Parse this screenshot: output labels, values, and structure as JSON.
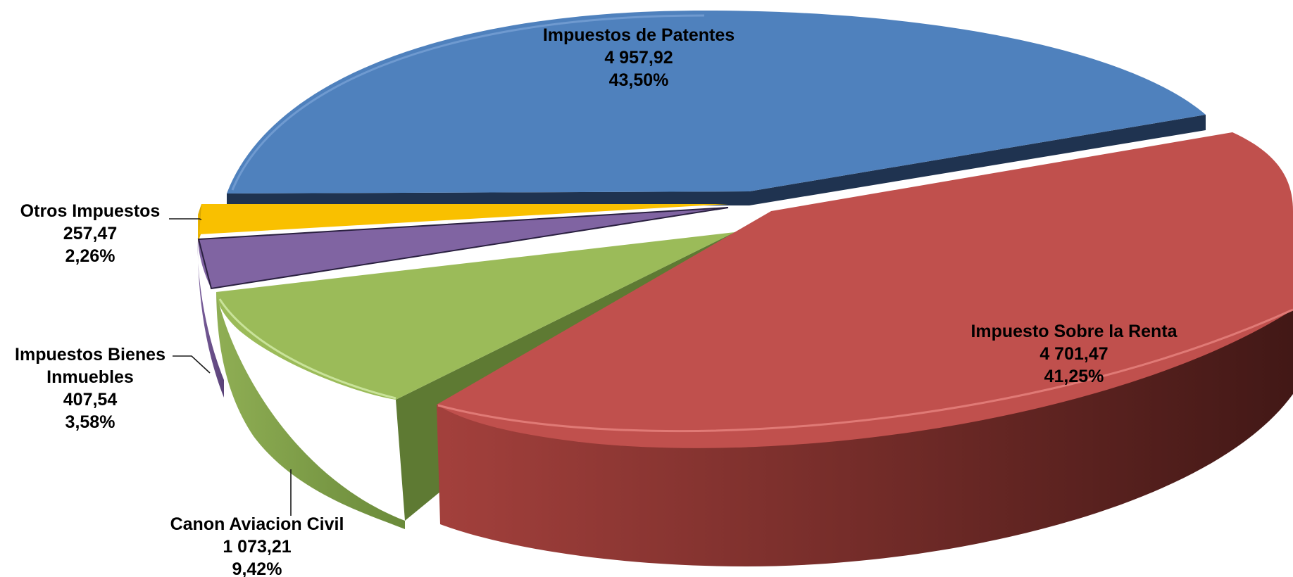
{
  "chart_data": {
    "type": "pie",
    "style": "3d-exploded",
    "slices": [
      {
        "name": "Impuestos de Patentes",
        "value_label": "4 957,92",
        "value": 4957.92,
        "percent_label": "43,50%",
        "percent": 43.5,
        "color": "#4F81BD"
      },
      {
        "name": "Impuesto Sobre la Renta",
        "value_label": "4 701,47",
        "value": 4701.47,
        "percent_label": "41,25%",
        "percent": 41.25,
        "color": "#C0504D"
      },
      {
        "name": "Canon Aviacion Civil",
        "value_label": "1 073,21",
        "value": 1073.21,
        "percent_label": "9,42%",
        "percent": 9.42,
        "color": "#9BBB59"
      },
      {
        "name": "Impuestos Bienes Inmuebles",
        "value_label": "407,54",
        "value": 407.54,
        "percent_label": "3,58%",
        "percent": 3.58,
        "color": "#8064A2"
      },
      {
        "name": "Otros Impuestos",
        "value_label": "257,47",
        "value": 257.47,
        "percent_label": "2,26%",
        "percent": 2.26,
        "color": "#F9C000"
      }
    ]
  }
}
